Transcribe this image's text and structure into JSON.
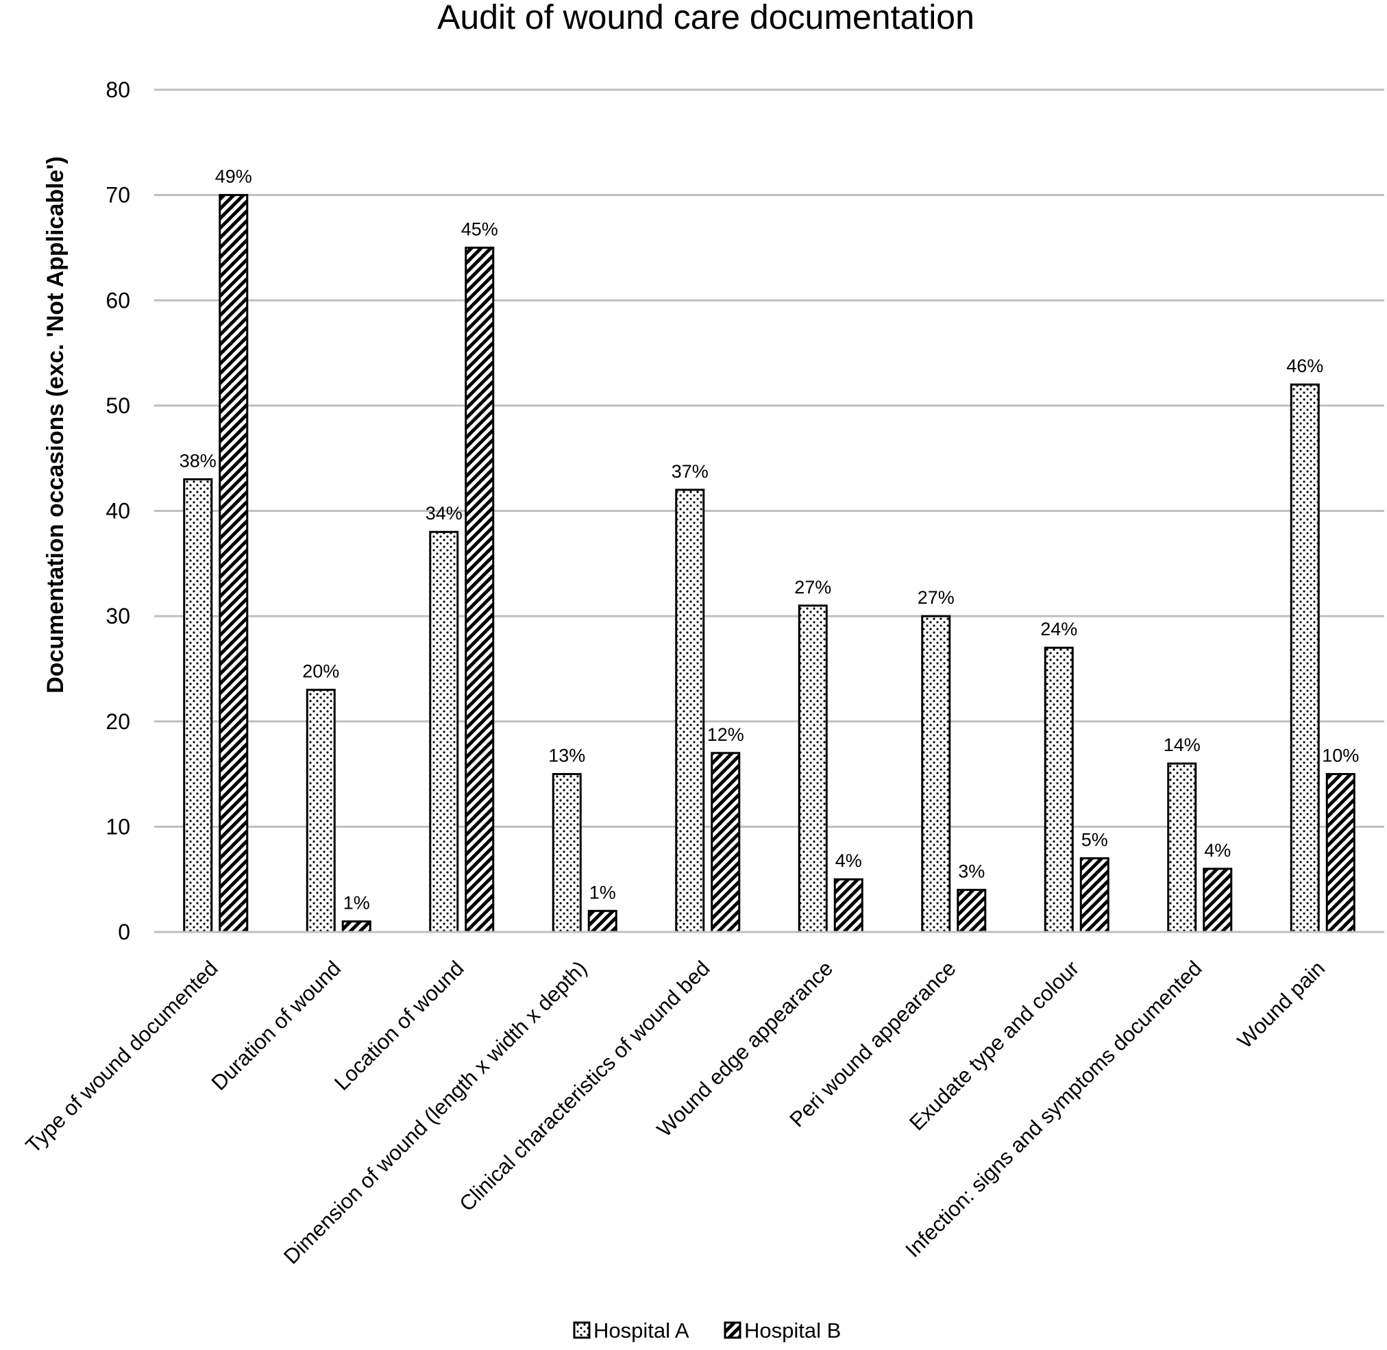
{
  "chart_data": {
    "type": "bar",
    "title": "Audit of wound care documentation",
    "xlabel": "",
    "ylabel": "Documentation occasions  (exc. 'Not Applicable')",
    "ylim": [
      0,
      80
    ],
    "yticks": [
      0,
      10,
      20,
      30,
      40,
      50,
      60,
      70,
      80
    ],
    "grid": true,
    "legend_position": "bottom",
    "categories": [
      "Type of wound documented",
      "Duration of wound",
      "Location of wound",
      "Dimension of wound (length x width x depth)",
      "Clinical characteristics of wound bed",
      "Wound edge appearance",
      "Peri wound appearance",
      "Exudate type and colour",
      "Infection: signs and symptoms documented",
      "Wound pain"
    ],
    "series": [
      {
        "name": "Hospital A",
        "pattern": "dotted",
        "values": [
          43,
          23,
          38,
          15,
          42,
          31,
          30,
          27,
          16,
          52
        ],
        "labels": [
          "38%",
          "20%",
          "34%",
          "13%",
          "37%",
          "27%",
          "27%",
          "24%",
          "14%",
          "46%"
        ]
      },
      {
        "name": "Hospital B",
        "pattern": "diagonal-hatch",
        "values": [
          70,
          1,
          65,
          2,
          17,
          5,
          4,
          7,
          6,
          15
        ],
        "labels": [
          "49%",
          "1%",
          "45%",
          "1%",
          "12%",
          "4%",
          "3%",
          "5%",
          "4%",
          "10%"
        ]
      }
    ],
    "colors": {
      "bar_fill": "#ffffff",
      "bar_stroke": "#000000",
      "grid": "#bfbfbf"
    }
  }
}
